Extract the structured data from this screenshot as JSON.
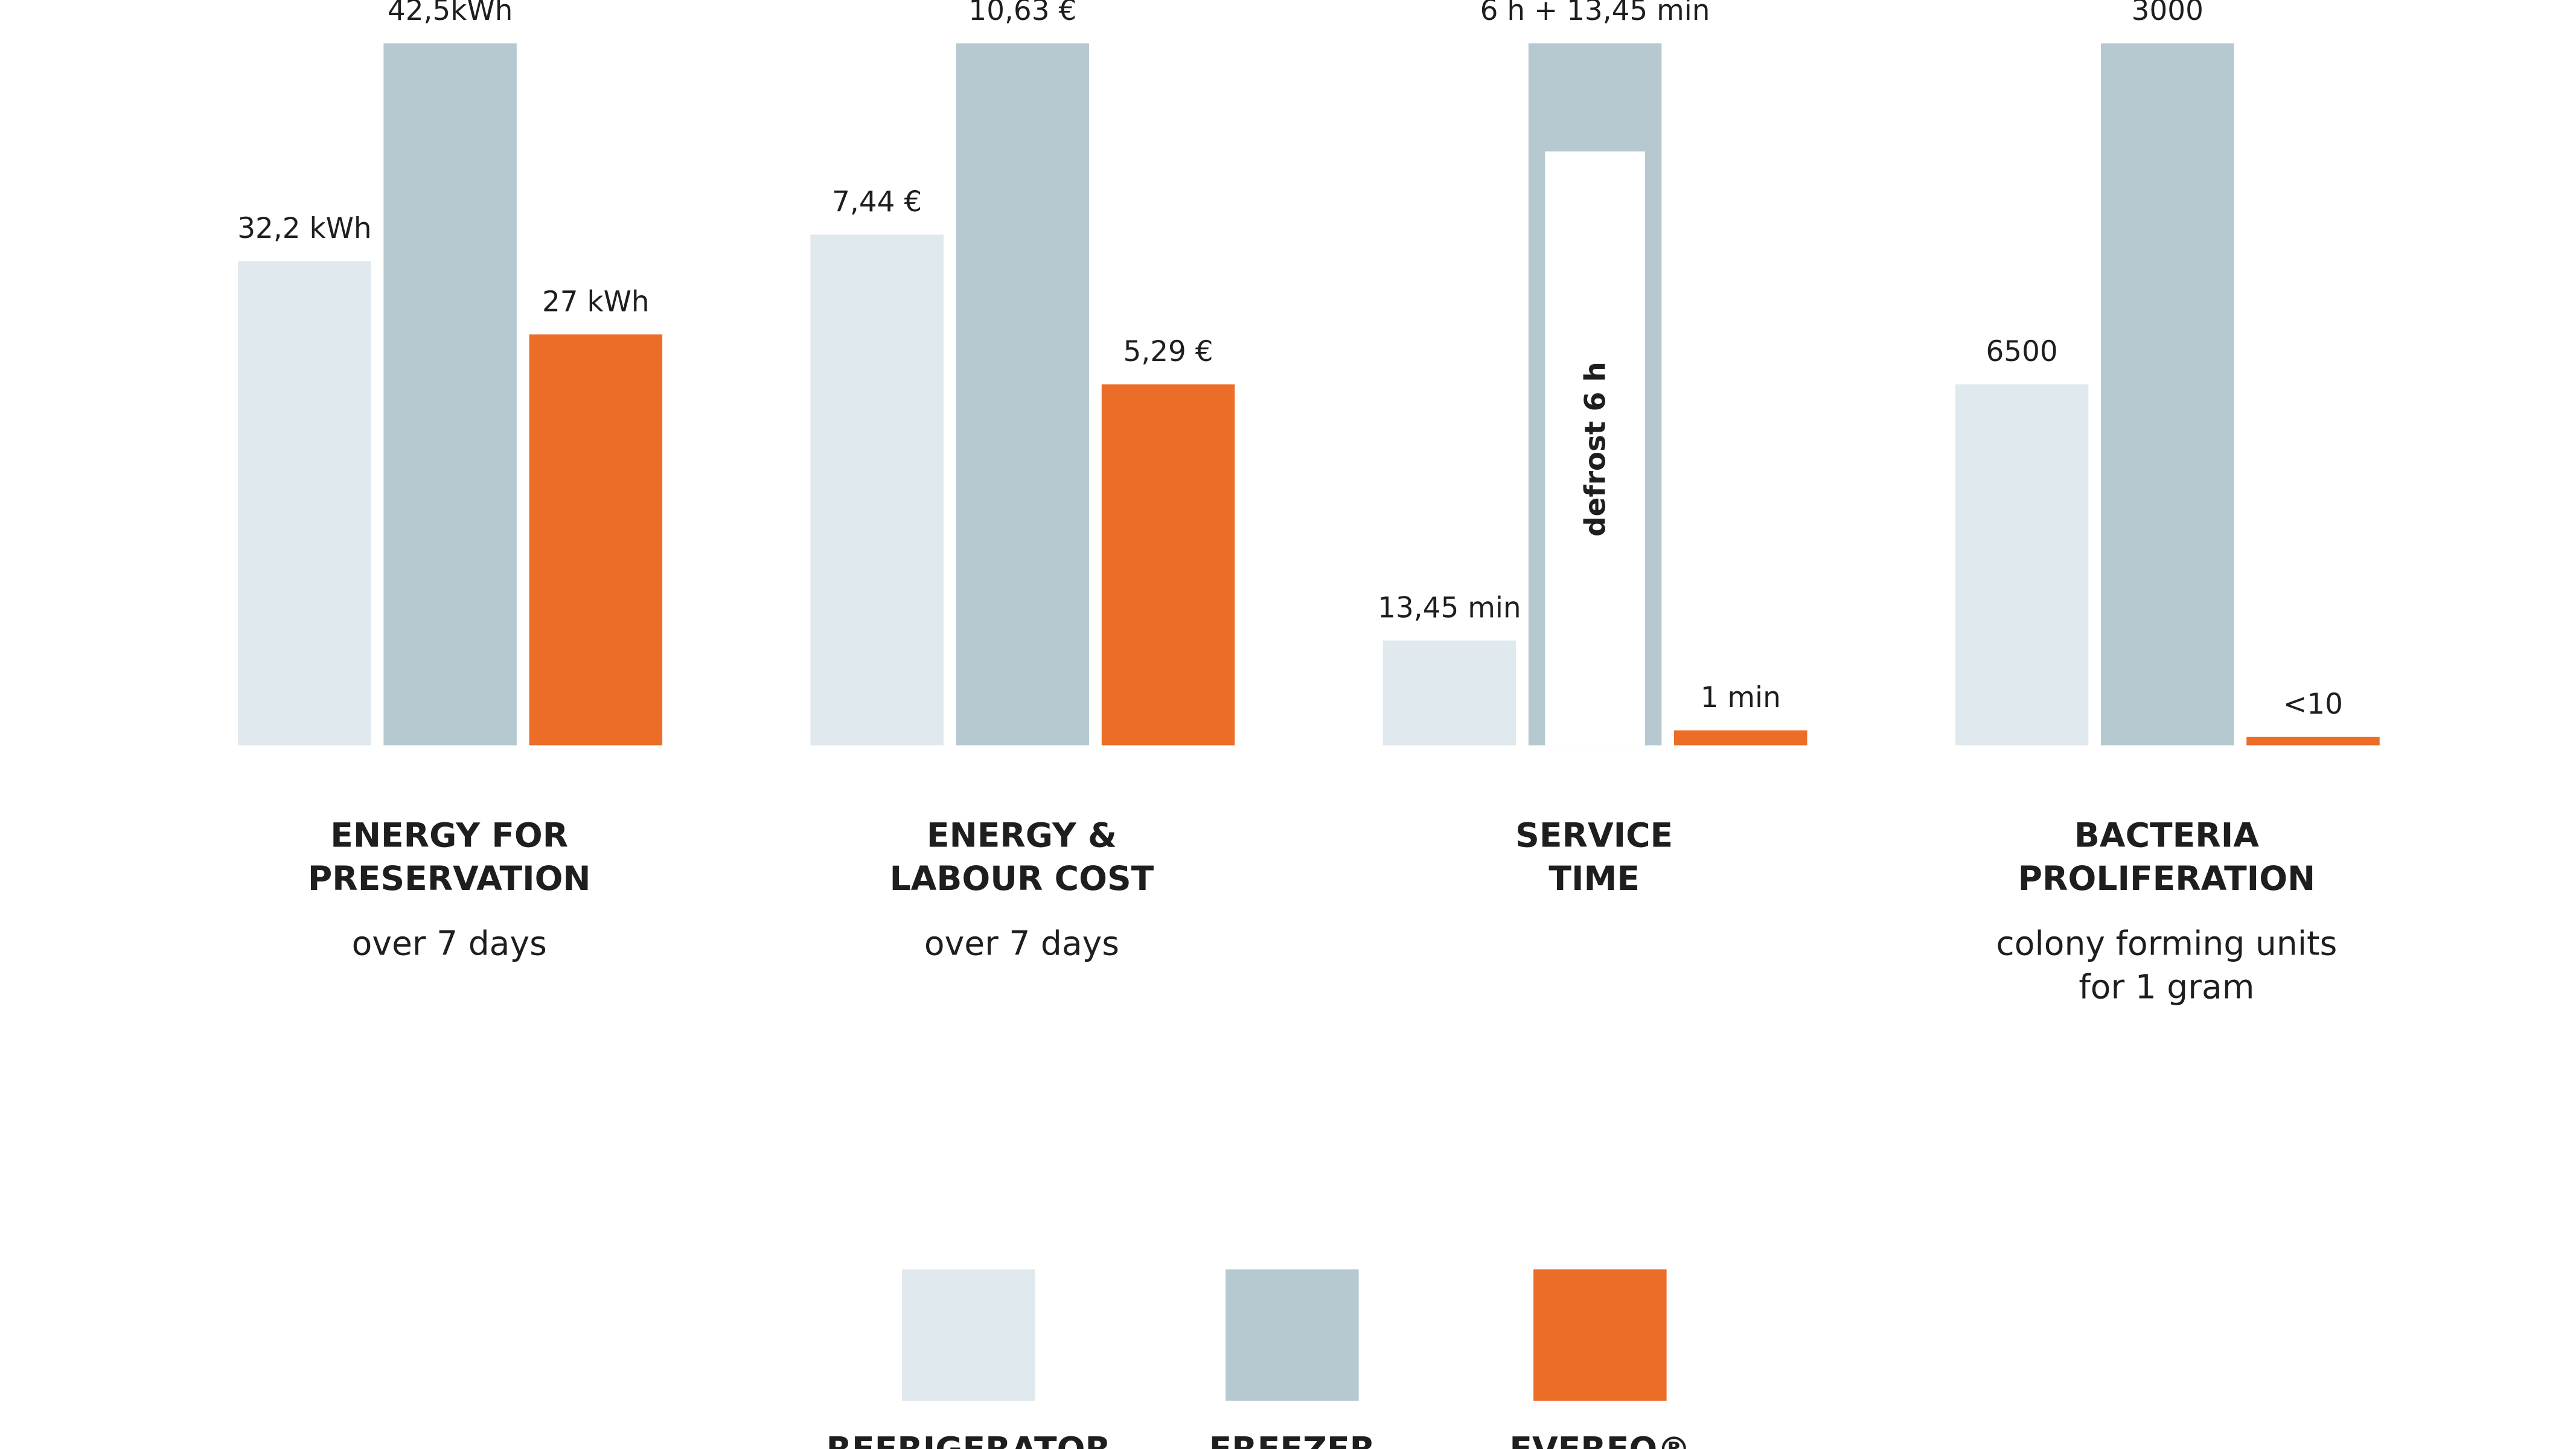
{
  "panels": [
    {
      "title": [
        "ENERGY FOR",
        "PRESERVATION"
      ],
      "subtitle": [
        "over 7 days"
      ],
      "bars": [
        "32,2 kWh",
        "42,5kWh",
        "27 kWh"
      ]
    },
    {
      "title": [
        "ENERGY &",
        "LABOUR COST"
      ],
      "subtitle": [
        "over 7 days"
      ],
      "bars": [
        "7,44 €",
        "10,63 €",
        "5,29 €"
      ]
    },
    {
      "title": [
        "SERVICE",
        "TIME"
      ],
      "bars": [
        "13,45 min",
        "6 h + 13,45 min",
        "1 min"
      ],
      "inner_label": "defrost 6 h"
    },
    {
      "title": [
        "BACTERIA",
        "PROLIFERATION"
      ],
      "subtitle": [
        "colony forming units",
        "for 1 gram"
      ],
      "bars": [
        "6500",
        "3000",
        "<10"
      ]
    }
  ],
  "legend": [
    {
      "label": "REFRIGERATOR",
      "color": "#dfe9ee"
    },
    {
      "label": "FREEZER",
      "color": "#b6c9d0"
    },
    {
      "label": "EVEREO®",
      "color": "#ec6d28"
    }
  ]
}
